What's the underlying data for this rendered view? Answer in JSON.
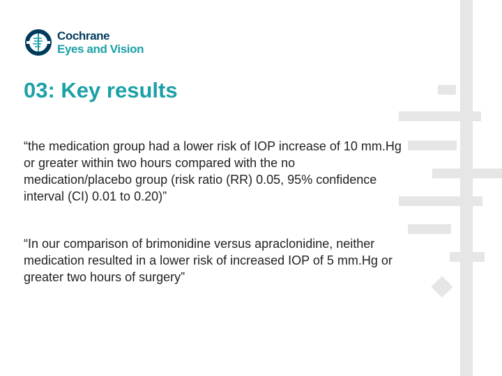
{
  "logo": {
    "line1": "Cochrane",
    "line2": "Eyes and Vision",
    "icon": "cochrane-logo-icon",
    "colors": {
      "dark": "#003b5c",
      "teal": "#1aa0a6"
    }
  },
  "slide": {
    "title": "03: Key results",
    "quotes": [
      "“the medication group had a lower risk of IOP increase of 10 mm.Hg or greater within two hours compared with the no medication/placebo group (risk ratio (RR) 0.05, 95% confidence interval (CI) 0.01 to 0.20)”",
      "“In our comparison of brimonidine versus apraclonidine, neither medication resulted in a lower risk of increased IOP of 5 mm.Hg or greater two hours of surgery”"
    ]
  },
  "colors": {
    "title": "#1aa0a6",
    "text": "#222222",
    "decoration": "#e6e6e6"
  }
}
